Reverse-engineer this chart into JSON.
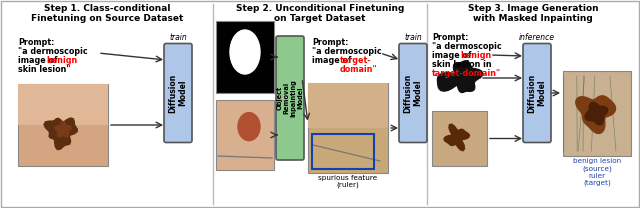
{
  "step1_title": "Step 1. Class-conditional\nFinetuning on Source Dataset",
  "step2_title": "Step 2. Unconditional Finetuning\non Target Dataset",
  "step3_title": "Step 3. Image Generation\nwith Masked Inpainting",
  "diffusion_box_color": "#aec6e8",
  "inpainting_box_color": "#8dc88d",
  "train_label": "train",
  "inference_label": "inference",
  "spurious_label": "spurious feature\n(ruler)",
  "output_label": "benign lesion\n(source)\nruler\n(target)",
  "bg_color": "#ffffff",
  "panel_bg": "#f5f5f5",
  "skin_color": "#d4a580",
  "skin_color2": "#c8a070",
  "lesion_dark": "#5a2e10",
  "lesion_med": "#7a3a18",
  "ruler_color": "#888888",
  "blob_color": "#111111"
}
